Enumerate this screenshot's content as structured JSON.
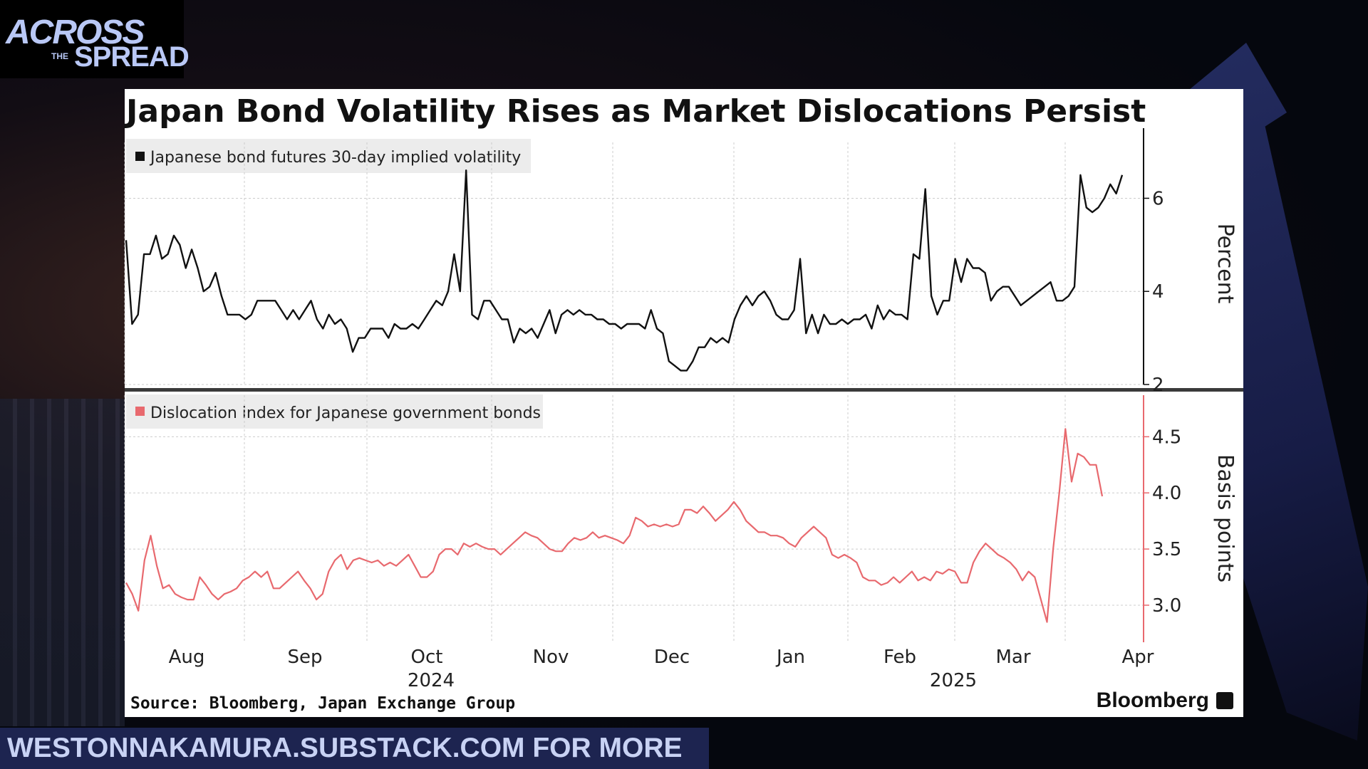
{
  "logo": {
    "line1": "ACROSS",
    "line2": "THE",
    "line3": "SPREAD"
  },
  "banner": {
    "text": "WESTONNAKAMURA.SUBSTACK.COM FOR MORE"
  },
  "chart": {
    "title": "Japan Bond Volatility Rises as Market Dislocations Persist",
    "source": "Source: Bloomberg, Japan Exchange Group",
    "brand": "Bloomberg"
  },
  "colors": {
    "vol_line": "#111111",
    "dislocation_line": "#e8696e",
    "grid": "#cccccc"
  },
  "chart_data": [
    {
      "type": "line",
      "legend": "Japanese bond futures 30-day implied volatility",
      "ylabel": "Percent",
      "yticks": [
        2,
        4,
        6
      ],
      "ylim": [
        2,
        7.2
      ],
      "x_axis": {
        "months": [
          "Aug",
          "Sep",
          "Oct",
          "Nov",
          "Dec",
          "Jan",
          "Feb",
          "Mar",
          "Apr"
        ],
        "years": [
          "2024",
          "2025"
        ]
      },
      "series": [
        {
          "values": [
            5.1,
            3.3,
            3.5,
            4.8,
            4.8,
            5.2,
            4.7,
            4.8,
            5.2,
            5.0,
            4.5,
            4.9,
            4.5,
            4.0,
            4.1,
            4.4,
            3.9,
            3.5,
            3.5,
            3.5,
            3.4,
            3.5,
            3.8,
            3.8,
            3.8,
            3.8,
            3.6,
            3.4,
            3.6,
            3.4,
            3.6,
            3.8,
            3.4,
            3.2,
            3.5,
            3.3,
            3.4,
            3.2,
            2.7,
            3.0,
            3.0,
            3.2,
            3.2,
            3.2,
            3.0,
            3.3,
            3.2,
            3.2,
            3.3,
            3.2,
            3.4,
            3.6,
            3.8,
            3.7,
            4.0,
            4.8,
            4.0,
            6.6,
            3.5,
            3.4,
            3.8,
            3.8,
            3.6,
            3.4,
            3.4,
            2.9,
            3.2,
            3.1,
            3.2,
            3.0,
            3.3,
            3.6,
            3.1,
            3.5,
            3.6,
            3.5,
            3.6,
            3.5,
            3.5,
            3.4,
            3.4,
            3.3,
            3.3,
            3.2,
            3.3,
            3.3,
            3.3,
            3.2,
            3.6,
            3.2,
            3.1,
            2.5,
            2.4,
            2.3,
            2.3,
            2.5,
            2.8,
            2.8,
            3.0,
            2.9,
            3.0,
            2.9,
            3.4,
            3.7,
            3.9,
            3.7,
            3.9,
            4.0,
            3.8,
            3.5,
            3.4,
            3.4,
            3.6,
            4.7,
            3.1,
            3.5,
            3.1,
            3.5,
            3.3,
            3.3,
            3.4,
            3.3,
            3.4,
            3.4,
            3.5,
            3.2,
            3.7,
            3.4,
            3.6,
            3.5,
            3.5,
            3.4,
            4.8,
            4.7,
            6.2,
            3.9,
            3.5,
            3.8,
            3.8,
            4.7,
            4.2,
            4.7,
            4.5,
            4.5,
            4.4,
            3.8,
            4.0,
            4.1,
            4.1,
            3.9,
            3.7,
            3.8,
            3.9,
            4.0,
            4.1,
            4.2,
            3.8,
            3.8,
            3.9,
            4.1,
            6.5,
            5.8,
            5.7,
            5.8,
            6.0,
            6.3,
            6.1,
            6.5
          ]
        }
      ]
    },
    {
      "type": "line",
      "legend": "Dislocation index for Japanese government bonds",
      "ylabel": "Basis points",
      "yticks": [
        "3.0",
        "3.5",
        "4.0",
        "4.5"
      ],
      "ylim": [
        2.67,
        4.87
      ],
      "series": [
        {
          "values": [
            3.2,
            3.1,
            2.95,
            3.4,
            3.62,
            3.35,
            3.15,
            3.18,
            3.1,
            3.07,
            3.05,
            3.05,
            3.25,
            3.18,
            3.1,
            3.05,
            3.1,
            3.12,
            3.15,
            3.22,
            3.25,
            3.3,
            3.25,
            3.3,
            3.15,
            3.15,
            3.2,
            3.25,
            3.3,
            3.22,
            3.15,
            3.05,
            3.1,
            3.3,
            3.4,
            3.45,
            3.32,
            3.4,
            3.42,
            3.4,
            3.38,
            3.4,
            3.35,
            3.38,
            3.35,
            3.4,
            3.45,
            3.35,
            3.25,
            3.25,
            3.3,
            3.45,
            3.5,
            3.5,
            3.45,
            3.55,
            3.52,
            3.55,
            3.52,
            3.5,
            3.5,
            3.45,
            3.5,
            3.55,
            3.6,
            3.65,
            3.62,
            3.6,
            3.55,
            3.5,
            3.48,
            3.48,
            3.55,
            3.6,
            3.58,
            3.6,
            3.65,
            3.6,
            3.62,
            3.6,
            3.58,
            3.55,
            3.62,
            3.78,
            3.75,
            3.7,
            3.72,
            3.7,
            3.72,
            3.7,
            3.72,
            3.85,
            3.85,
            3.82,
            3.88,
            3.82,
            3.75,
            3.8,
            3.85,
            3.92,
            3.85,
            3.75,
            3.7,
            3.65,
            3.65,
            3.62,
            3.62,
            3.6,
            3.55,
            3.52,
            3.6,
            3.65,
            3.7,
            3.65,
            3.6,
            3.45,
            3.42,
            3.45,
            3.42,
            3.38,
            3.25,
            3.22,
            3.22,
            3.18,
            3.2,
            3.25,
            3.2,
            3.25,
            3.3,
            3.22,
            3.25,
            3.22,
            3.3,
            3.28,
            3.32,
            3.3,
            3.2,
            3.2,
            3.38,
            3.48,
            3.55,
            3.5,
            3.45,
            3.42,
            3.38,
            3.32,
            3.22,
            3.3,
            3.25,
            3.05,
            2.85,
            3.5,
            4.0,
            4.57,
            4.1,
            4.35,
            4.32,
            4.25,
            4.25,
            3.97
          ]
        }
      ]
    }
  ]
}
